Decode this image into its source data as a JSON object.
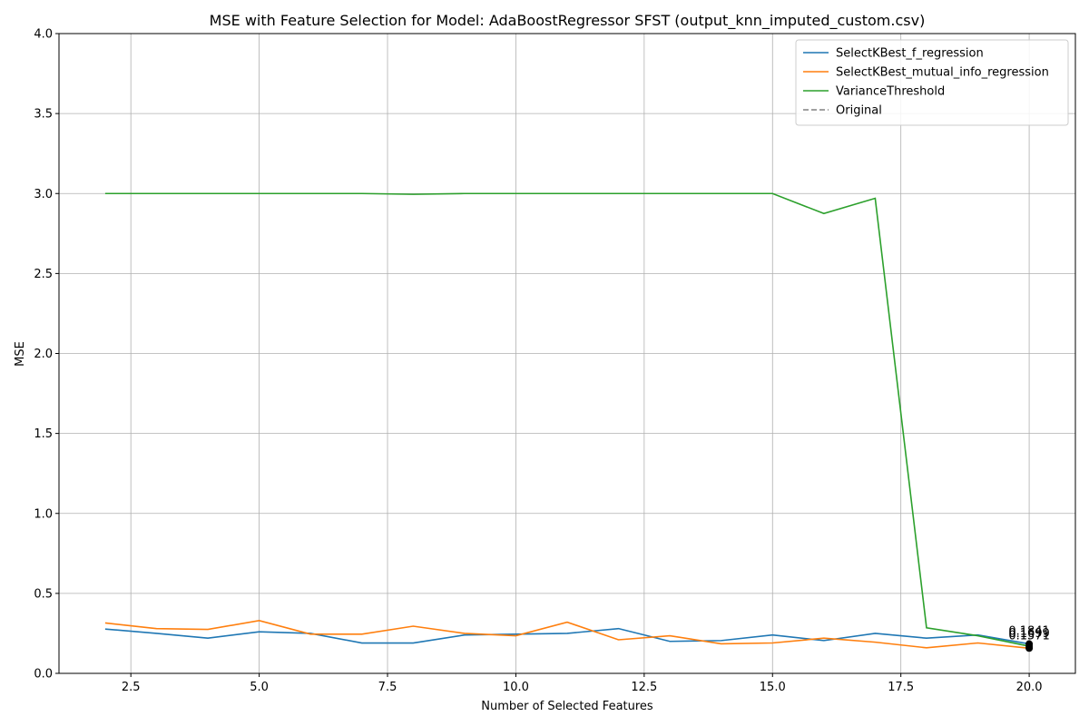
{
  "chart_data": {
    "type": "line",
    "title": "MSE with Feature Selection for Model: AdaBoostRegressor SFST (output_knn_imputed_custom.csv)",
    "xlabel": "Number of Selected Features",
    "ylabel": "MSE",
    "x": [
      2,
      3,
      4,
      5,
      6,
      7,
      8,
      9,
      10,
      11,
      12,
      13,
      14,
      15,
      16,
      17,
      18,
      19,
      20
    ],
    "series": [
      {
        "name": "SelectKBest_f_regression",
        "color": "#1f77b4",
        "values": [
          0.277,
          0.25,
          0.22,
          0.26,
          0.25,
          0.19,
          0.19,
          0.24,
          0.245,
          0.25,
          0.28,
          0.2,
          0.205,
          0.24,
          0.205,
          0.25,
          0.22,
          0.24,
          0.1841
        ]
      },
      {
        "name": "SelectKBest_mutual_info_regression",
        "color": "#ff7f0e",
        "values": [
          0.315,
          0.28,
          0.275,
          0.33,
          0.245,
          0.245,
          0.295,
          0.25,
          0.235,
          0.32,
          0.21,
          0.235,
          0.185,
          0.19,
          0.22,
          0.195,
          0.16,
          0.19,
          0.1571
        ]
      },
      {
        "name": "VarianceThreshold",
        "color": "#2ca02c",
        "values": [
          3.0,
          3.0,
          3.0,
          3.0,
          3.0,
          3.0,
          2.995,
          3.0,
          3.0,
          3.0,
          3.0,
          3.0,
          3.0,
          3.0,
          2.875,
          2.97,
          0.285,
          0.235,
          0.1699
        ]
      },
      {
        "name": "Original",
        "color": "#808080",
        "dashed": true,
        "values": [
          null,
          null,
          null,
          null,
          null,
          null,
          null,
          null,
          null,
          null,
          null,
          null,
          null,
          null,
          null,
          null,
          null,
          null,
          null
        ]
      }
    ],
    "xlim": [
      1.1,
      20.9
    ],
    "ylim": [
      0,
      4
    ],
    "xticks": [
      {
        "value": 2.5,
        "label": "2.5"
      },
      {
        "value": 5,
        "label": "5.0"
      },
      {
        "value": 7.5,
        "label": "7.5"
      },
      {
        "value": 10,
        "label": "10.0"
      },
      {
        "value": 12.5,
        "label": "12.5"
      },
      {
        "value": 15,
        "label": "15.0"
      },
      {
        "value": 17.5,
        "label": "17.5"
      },
      {
        "value": 20,
        "label": "20.0"
      }
    ],
    "yticks": [
      {
        "value": 0,
        "label": "0.0"
      },
      {
        "value": 0.5,
        "label": "0.5"
      },
      {
        "value": 1,
        "label": "1.0"
      },
      {
        "value": 1.5,
        "label": "1.5"
      },
      {
        "value": 2,
        "label": "2.0"
      },
      {
        "value": 2.5,
        "label": "2.5"
      },
      {
        "value": 3,
        "label": "3.0"
      },
      {
        "value": 3.5,
        "label": "3.5"
      },
      {
        "value": 4,
        "label": "4.0"
      }
    ],
    "grid": true,
    "legend": "upper right"
  }
}
